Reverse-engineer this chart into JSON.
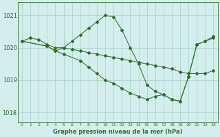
{
  "bg_color": "#d4eeed",
  "grid_color": "#a8cccc",
  "line_color": "#2d6e2d",
  "xlabel": "Graphe pression niveau de la mer (hPa)",
  "ylim": [
    1017.7,
    1021.4
  ],
  "xlim": [
    -0.5,
    23.5
  ],
  "yticks": [
    1018,
    1019,
    1020,
    1021
  ],
  "xticks": [
    0,
    1,
    2,
    3,
    4,
    5,
    6,
    7,
    8,
    9,
    10,
    11,
    12,
    13,
    14,
    15,
    16,
    17,
    18,
    19,
    20,
    21,
    22,
    23
  ],
  "series": [
    {
      "x": [
        0,
        1,
        2,
        3,
        4,
        5,
        6,
        7,
        8,
        9,
        10,
        11,
        12,
        13,
        14,
        15,
        16,
        17,
        18,
        19,
        20,
        21,
        22,
        23
      ],
      "y": [
        1020.2,
        1020.3,
        1020.25,
        1020.1,
        1020.0,
        1020.0,
        1019.95,
        1019.9,
        1019.85,
        1019.8,
        1019.75,
        1019.7,
        1019.65,
        1019.6,
        1019.55,
        1019.5,
        1019.45,
        1019.4,
        1019.35,
        1019.25,
        1019.2,
        1019.2,
        1019.2,
        1019.3
      ]
    },
    {
      "x": [
        0,
        3,
        4,
        5,
        7,
        8,
        9,
        10,
        11,
        12,
        13,
        14,
        15,
        16,
        17,
        18,
        19,
        20,
        21,
        22,
        23
      ],
      "y": [
        1020.2,
        1020.05,
        1019.9,
        1019.8,
        1019.6,
        1019.4,
        1019.2,
        1019.0,
        1018.9,
        1018.75,
        1018.6,
        1018.5,
        1018.4,
        1018.5,
        1018.55,
        1018.4,
        1018.35,
        1019.1,
        1020.1,
        1020.2,
        1020.3
      ]
    },
    {
      "x": [
        0,
        3,
        4,
        5,
        6,
        7,
        8,
        9,
        10,
        11,
        12,
        13,
        14,
        15,
        16,
        17,
        18,
        19,
        20,
        21,
        22,
        23
      ],
      "y": [
        1020.2,
        1020.05,
        1019.9,
        1020.0,
        1020.2,
        1020.4,
        1020.6,
        1020.8,
        1021.0,
        1020.95,
        1020.55,
        1020.0,
        1019.5,
        1018.85,
        1018.65,
        1018.55,
        1018.4,
        1018.35,
        1019.1,
        1020.1,
        1020.2,
        1020.35
      ]
    }
  ]
}
